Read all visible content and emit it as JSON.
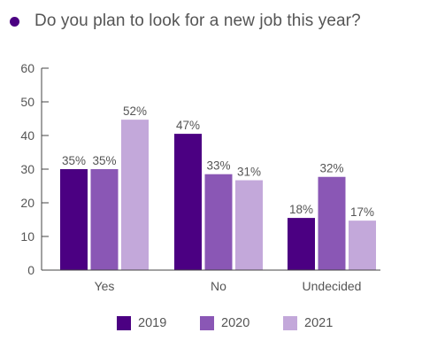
{
  "header": {
    "title": "Do you plan to look for a new job this year?",
    "dot_color": "#4b0082"
  },
  "chart_data": {
    "type": "bar",
    "title": "Do you plan to look for a new job this year?",
    "xlabel": "",
    "ylabel": "",
    "categories": [
      "Yes",
      "No",
      "Undecided"
    ],
    "ylim": [
      0,
      60
    ],
    "yticks": [
      0,
      10,
      20,
      30,
      40,
      50,
      60
    ],
    "grid": false,
    "legend_position": "bottom",
    "series": [
      {
        "name": "2019",
        "color": "#4b0082",
        "values": [
          30,
          40.5,
          15.5
        ],
        "labels": [
          "35%",
          "47%",
          "18%"
        ]
      },
      {
        "name": "2020",
        "color": "#8a57b5",
        "values": [
          30,
          28.5,
          27.7
        ],
        "labels": [
          "35%",
          "33%",
          "32%"
        ]
      },
      {
        "name": "2021",
        "color": "#c3a8da",
        "values": [
          44.7,
          26.7,
          14.7
        ],
        "labels": [
          "52%",
          "31%",
          "17%"
        ]
      }
    ]
  }
}
